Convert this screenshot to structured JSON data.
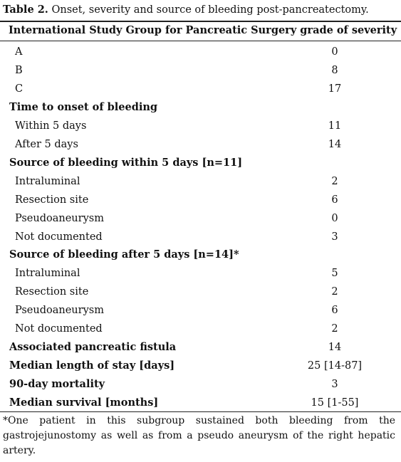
{
  "caption": {
    "label": "Table 2.",
    "text": " Onset, severity and source of bleeding post-pancreatectomy."
  },
  "header": "International Study Group for Pancreatic Surgery grade of severity",
  "rows": [
    {
      "name": "A",
      "value": "0",
      "section": false
    },
    {
      "name": "B",
      "value": "8",
      "section": false
    },
    {
      "name": "C",
      "value": "17",
      "section": false
    },
    {
      "name": "Time to onset of bleeding",
      "value": "",
      "section": true
    },
    {
      "name": "Within 5 days",
      "value": "11",
      "section": false
    },
    {
      "name": "After 5 days",
      "value": "14",
      "section": false
    },
    {
      "name": "Source of bleeding within 5 days [n=11]",
      "value": "",
      "section": true
    },
    {
      "name": "Intraluminal",
      "value": "2",
      "section": false
    },
    {
      "name": "Resection site",
      "value": "6",
      "section": false
    },
    {
      "name": "Pseudoaneurysm",
      "value": "0",
      "section": false
    },
    {
      "name": "Not documented",
      "value": "3",
      "section": false
    },
    {
      "name": "Source of bleeding after 5 days [n=14]*",
      "value": "",
      "section": true
    },
    {
      "name": "Intraluminal",
      "value": "5",
      "section": false
    },
    {
      "name": "Resection site",
      "value": "2",
      "section": false
    },
    {
      "name": "Pseudoaneurysm",
      "value": "6",
      "section": false
    },
    {
      "name": "Not documented",
      "value": "2",
      "section": false
    },
    {
      "name": "Associated pancreatic fistula",
      "value": "14",
      "section": true
    },
    {
      "name": "Median length of stay [days]",
      "value": "25 [14-87]",
      "section": true
    },
    {
      "name": "90-day mortality",
      "value": "3",
      "section": true
    },
    {
      "name": "Median survival [months]",
      "value": "15 [1-55]",
      "section": true
    }
  ],
  "footnote": "*One patient in this subgroup sustained both bleeding from the gastrojejunostomy as well as from a pseudo aneurysm of the right hepatic artery."
}
